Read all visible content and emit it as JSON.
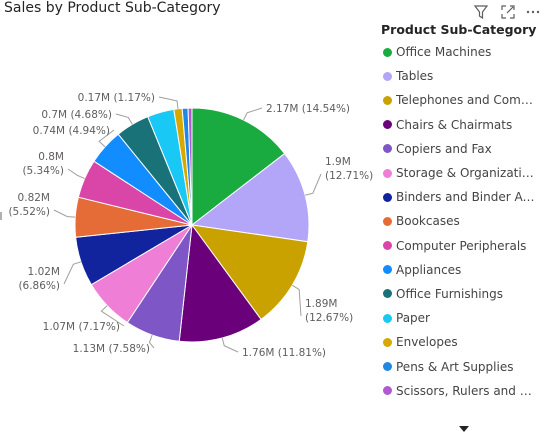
{
  "title": "Sales by Product Sub-Category",
  "toolbar": {
    "filter_icon": "filter-icon",
    "focus_icon": "focus-mode-icon",
    "more_icon": "more-options-icon"
  },
  "legend": {
    "title": "Product Sub-Category",
    "items": [
      {
        "label": "Office Machines",
        "color": "#1aab40"
      },
      {
        "label": "Tables",
        "color": "#b3a5f7"
      },
      {
        "label": "Telephones and Comm...",
        "color": "#c9a200"
      },
      {
        "label": "Chairs & Chairmats",
        "color": "#6b007b"
      },
      {
        "label": "Copiers and Fax",
        "color": "#7e56c5"
      },
      {
        "label": "Storage & Organization",
        "color": "#ef7ed6"
      },
      {
        "label": "Binders and Binder Acc...",
        "color": "#12239e"
      },
      {
        "label": "Bookcases",
        "color": "#e66c37"
      },
      {
        "label": "Computer Peripherals",
        "color": "#d946a8"
      },
      {
        "label": "Appliances",
        "color": "#118dff"
      },
      {
        "label": "Office Furnishings",
        "color": "#197278"
      },
      {
        "label": "Paper",
        "color": "#1ac8f5"
      },
      {
        "label": "Envelopes",
        "color": "#d6a800"
      },
      {
        "label": "Pens & Art Supplies",
        "color": "#1e88e5"
      },
      {
        "label": "Scissors, Rulers and Tri...",
        "color": "#b05ad1"
      }
    ]
  },
  "chart_data": {
    "type": "pie",
    "title": "Sales by Product Sub-Category",
    "categories": [
      "Office Machines",
      "Tables",
      "Telephones and Comm...",
      "Chairs & Chairmats",
      "Copiers and Fax",
      "Storage & Organization",
      "Binders and Binder Acc...",
      "Bookcases",
      "Computer Peripherals",
      "Appliances",
      "Office Furnishings",
      "Paper",
      "Envelopes",
      "Pens & Art Supplies",
      "Scissors, Rulers and Tri..."
    ],
    "values": [
      2.17,
      1.9,
      1.89,
      1.76,
      1.13,
      1.07,
      1.02,
      0.82,
      0.8,
      0.74,
      0.7,
      0.55,
      0.17,
      0.12,
      0.08
    ],
    "percents": [
      14.54,
      12.71,
      12.67,
      11.81,
      7.58,
      7.17,
      6.86,
      5.52,
      5.34,
      4.94,
      4.68,
      3.7,
      1.17,
      0.8,
      0.5
    ],
    "data_labels": [
      {
        "value": "2.17M",
        "percent": "(14.54%)"
      },
      {
        "value": "1.9M",
        "percent": "(12.71%)"
      },
      {
        "value": "1.89M",
        "percent": "(12.67%)"
      },
      {
        "value": "1.76M",
        "percent": "(11.81%)"
      },
      {
        "value": "1.13M",
        "percent": "(7.58%)"
      },
      {
        "value": "1.07M",
        "percent": "(7.17%)"
      },
      {
        "value": "1.02M",
        "percent": "(6.86%)"
      },
      {
        "value": "0.82M",
        "percent": "(5.52%)"
      },
      {
        "value": "0.8M",
        "percent": "(5.34%)"
      },
      {
        "value": "0.74M",
        "percent": "(4.94%)"
      },
      {
        "value": "0.7M",
        "percent": "(4.68%)"
      },
      null,
      {
        "value": "0.17M",
        "percent": "(1.17%)"
      },
      null,
      null
    ],
    "legend_position": "right"
  }
}
